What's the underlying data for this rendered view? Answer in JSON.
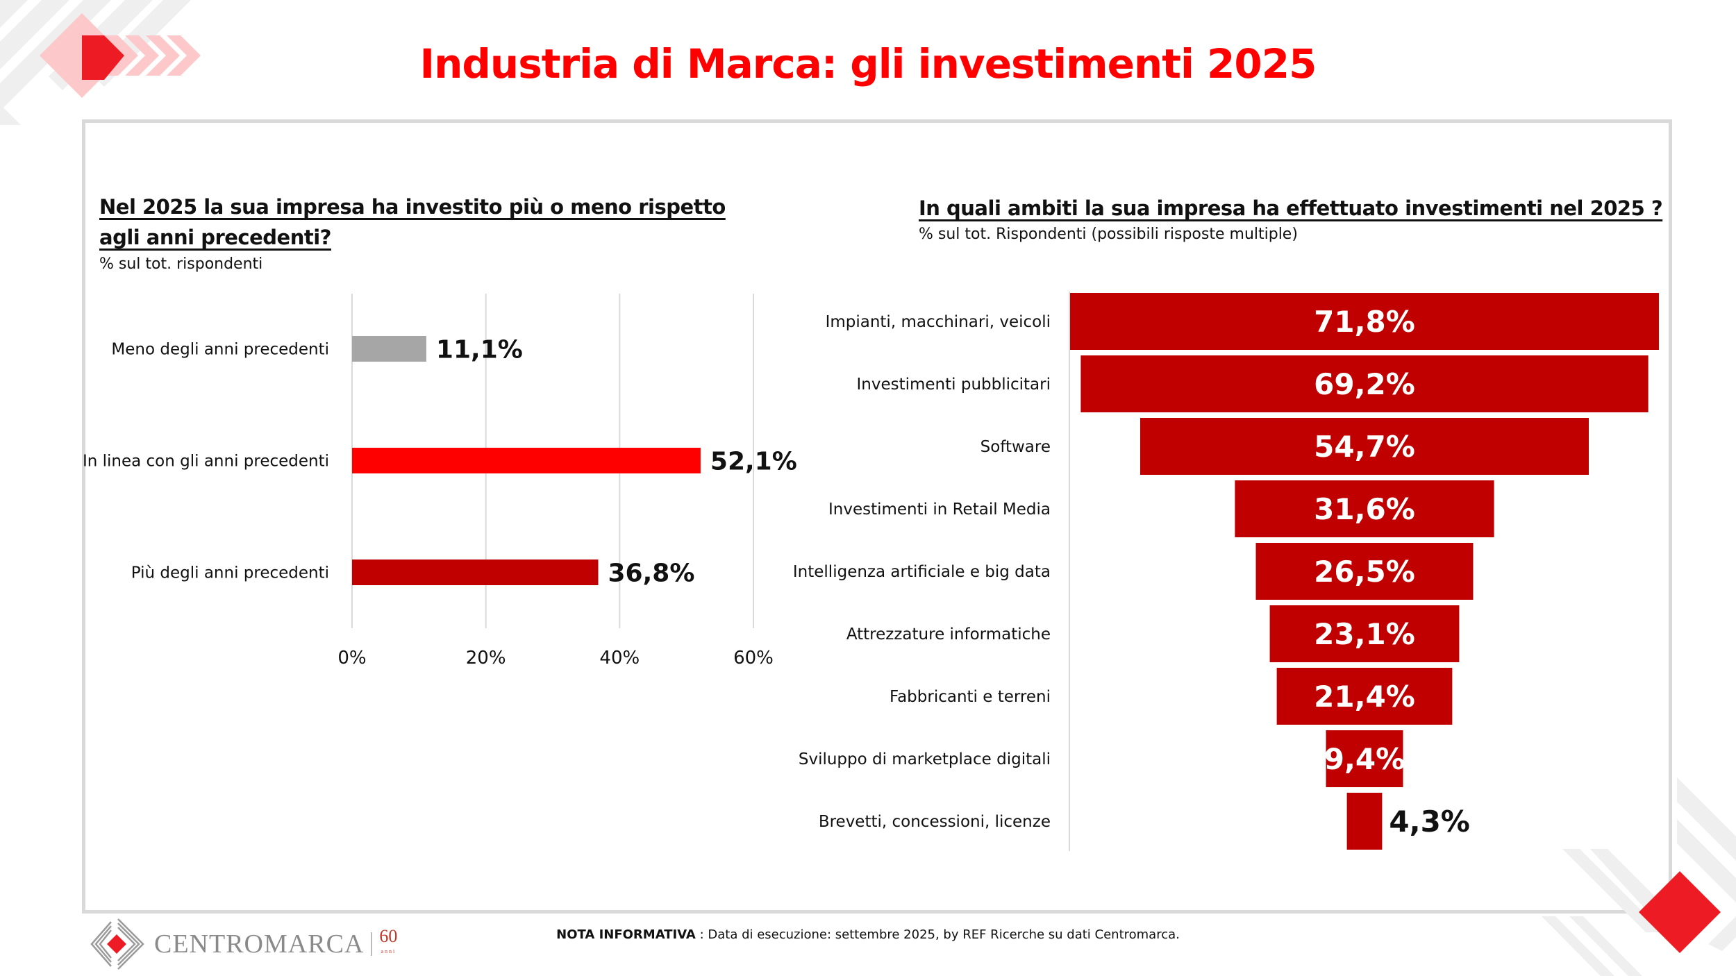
{
  "header": {
    "title": "Industria di Marca: gli investimenti 2025"
  },
  "colors": {
    "brand_red": "#ed1c24",
    "title_red": "#ff0000",
    "bar_dark_red": "#c00000",
    "bar_red": "#ff0000",
    "bar_grey": "#a6a6a6",
    "frame_grey": "#d9d9d9"
  },
  "left_panel": {
    "question": "Nel 2025 la sua impresa ha investito più o meno rispetto agli anni precedenti?",
    "question_line1": "Nel 2025 la sua impresa ha investito più o meno rispetto",
    "question_line2": "agli anni precedenti?",
    "subtitle": "% sul tot. rispondenti"
  },
  "right_panel": {
    "question": "In quali ambiti la sua impresa ha effettuato investimenti nel 2025 ?",
    "subtitle": "% sul tot. Rispondenti (possibili risposte multiple)"
  },
  "chart_data": [
    {
      "type": "bar",
      "orientation": "horizontal",
      "title": "Nel 2025 la sua impresa ha investito più o meno rispetto agli anni precedenti?",
      "subtitle": "% sul tot. rispondenti",
      "categories": [
        "Meno degli anni precedenti",
        "In linea con gli anni precedenti",
        "Più degli anni precedenti"
      ],
      "values": [
        11.1,
        52.1,
        36.8
      ],
      "data_labels": [
        "11,1%",
        "52,1%",
        "36,8%"
      ],
      "bar_colors": [
        "#a6a6a6",
        "#ff0000",
        "#c00000"
      ],
      "xlim": [
        0,
        60
      ],
      "xticks": [
        0,
        20,
        40,
        60
      ],
      "xtick_labels": [
        "0%",
        "20%",
        "40%",
        "60%"
      ],
      "xlabel": "",
      "ylabel": "",
      "grid": true
    },
    {
      "type": "bar",
      "orientation": "horizontal-centered",
      "title": "In quali ambiti la sua impresa ha effettuato investimenti nel 2025 ?",
      "subtitle": "% sul tot. Rispondenti (possibili risposte multiple)",
      "categories": [
        "Impianti, macchinari, veicoli",
        "Investimenti pubblicitari",
        "Software",
        "Investimenti in Retail Media",
        "Intelligenza artificiale e big data",
        "Attrezzature informatiche",
        "Fabbricanti e terreni",
        "Sviluppo di marketplace digitali",
        "Brevetti, concessioni, licenze"
      ],
      "values": [
        71.8,
        69.2,
        54.7,
        31.6,
        26.5,
        23.1,
        21.4,
        9.4,
        4.3
      ],
      "data_labels": [
        "71,8%",
        "69,2%",
        "54,7%",
        "31,6%",
        "26,5%",
        "23,1%",
        "21,4%",
        "9,4%",
        "4,3%"
      ],
      "bar_color": "#c00000",
      "grid": false
    }
  ],
  "footer": {
    "note_label": "NOTA INFORMATIVA",
    "note_text": " : Data di esecuzione: settembre 2025, by REF Ricerche su dati Centromarca.",
    "logo_text": "CENTROMARCA",
    "logo_badge": "60",
    "logo_badge_sub": "anni"
  }
}
